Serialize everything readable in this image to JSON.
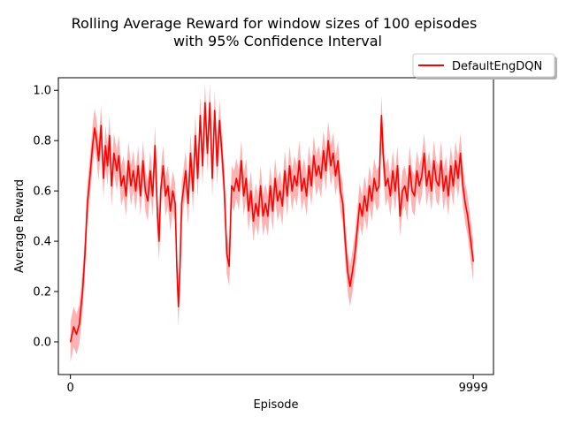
{
  "chart_data": {
    "type": "line",
    "title_line1": "Rolling Average Reward for window sizes of 100 episodes",
    "title_line2": "with 95% Confidence Interval",
    "xlabel": "Episode",
    "ylabel": "Average Reward",
    "xlim": [
      -300,
      10500
    ],
    "ylim": [
      -0.13,
      1.05
    ],
    "x_ticks": [
      0,
      9999
    ],
    "x_tick_labels": [
      "0",
      "9999"
    ],
    "y_ticks": [
      0.0,
      0.2,
      0.4,
      0.6,
      0.8,
      1.0
    ],
    "y_tick_labels": [
      "0.0",
      "0.2",
      "0.4",
      "0.6",
      "0.8",
      "1.0"
    ],
    "grid": false,
    "legend_placement": "above-right",
    "series": [
      {
        "name": "DefaultEngDQN",
        "color": "#ff0000",
        "band_color": "#ff0000",
        "band_opacity": 0.3,
        "ci_halfwidth": 0.08,
        "points": [
          [
            0,
            0.0
          ],
          [
            80,
            0.06
          ],
          [
            150,
            0.03
          ],
          [
            220,
            0.07
          ],
          [
            300,
            0.2
          ],
          [
            360,
            0.35
          ],
          [
            420,
            0.55
          ],
          [
            480,
            0.65
          ],
          [
            550,
            0.78
          ],
          [
            600,
            0.85
          ],
          [
            650,
            0.8
          ],
          [
            700,
            0.72
          ],
          [
            760,
            0.86
          ],
          [
            820,
            0.65
          ],
          [
            870,
            0.78
          ],
          [
            920,
            0.7
          ],
          [
            970,
            0.82
          ],
          [
            1020,
            0.62
          ],
          [
            1080,
            0.75
          ],
          [
            1150,
            0.68
          ],
          [
            1200,
            0.74
          ],
          [
            1260,
            0.62
          ],
          [
            1320,
            0.66
          ],
          [
            1380,
            0.58
          ],
          [
            1440,
            0.72
          ],
          [
            1500,
            0.62
          ],
          [
            1560,
            0.68
          ],
          [
            1620,
            0.6
          ],
          [
            1680,
            0.7
          ],
          [
            1740,
            0.58
          ],
          [
            1800,
            0.72
          ],
          [
            1860,
            0.6
          ],
          [
            1920,
            0.56
          ],
          [
            1980,
            0.68
          ],
          [
            2040,
            0.58
          ],
          [
            2100,
            0.78
          ],
          [
            2160,
            0.5
          ],
          [
            2200,
            0.4
          ],
          [
            2240,
            0.6
          ],
          [
            2300,
            0.7
          ],
          [
            2360,
            0.58
          ],
          [
            2420,
            0.62
          ],
          [
            2480,
            0.52
          ],
          [
            2540,
            0.6
          ],
          [
            2600,
            0.55
          ],
          [
            2640,
            0.3
          ],
          [
            2680,
            0.14
          ],
          [
            2720,
            0.3
          ],
          [
            2760,
            0.55
          ],
          [
            2800,
            0.6
          ],
          [
            2860,
            0.68
          ],
          [
            2920,
            0.55
          ],
          [
            2980,
            0.75
          ],
          [
            3040,
            0.6
          ],
          [
            3100,
            0.82
          ],
          [
            3160,
            0.65
          ],
          [
            3220,
            0.9
          ],
          [
            3280,
            0.7
          ],
          [
            3340,
            0.95
          ],
          [
            3400,
            0.75
          ],
          [
            3460,
            0.95
          ],
          [
            3520,
            0.65
          ],
          [
            3580,
            0.92
          ],
          [
            3640,
            0.7
          ],
          [
            3700,
            0.88
          ],
          [
            3760,
            0.75
          ],
          [
            3820,
            0.6
          ],
          [
            3880,
            0.35
          ],
          [
            3940,
            0.3
          ],
          [
            4000,
            0.62
          ],
          [
            4060,
            0.6
          ],
          [
            4120,
            0.65
          ],
          [
            4180,
            0.6
          ],
          [
            4240,
            0.72
          ],
          [
            4300,
            0.58
          ],
          [
            4360,
            0.65
          ],
          [
            4420,
            0.52
          ],
          [
            4480,
            0.6
          ],
          [
            4540,
            0.48
          ],
          [
            4600,
            0.55
          ],
          [
            4660,
            0.5
          ],
          [
            4720,
            0.62
          ],
          [
            4780,
            0.5
          ],
          [
            4840,
            0.55
          ],
          [
            4900,
            0.5
          ],
          [
            4960,
            0.62
          ],
          [
            5020,
            0.52
          ],
          [
            5080,
            0.65
          ],
          [
            5140,
            0.56
          ],
          [
            5200,
            0.6
          ],
          [
            5260,
            0.54
          ],
          [
            5320,
            0.68
          ],
          [
            5380,
            0.58
          ],
          [
            5440,
            0.7
          ],
          [
            5500,
            0.6
          ],
          [
            5560,
            0.66
          ],
          [
            5620,
            0.62
          ],
          [
            5680,
            0.72
          ],
          [
            5740,
            0.6
          ],
          [
            5800,
            0.65
          ],
          [
            5860,
            0.58
          ],
          [
            5920,
            0.7
          ],
          [
            5980,
            0.62
          ],
          [
            6040,
            0.74
          ],
          [
            6100,
            0.66
          ],
          [
            6160,
            0.7
          ],
          [
            6220,
            0.65
          ],
          [
            6280,
            0.76
          ],
          [
            6340,
            0.68
          ],
          [
            6400,
            0.8
          ],
          [
            6460,
            0.7
          ],
          [
            6520,
            0.75
          ],
          [
            6580,
            0.66
          ],
          [
            6640,
            0.72
          ],
          [
            6700,
            0.6
          ],
          [
            6760,
            0.55
          ],
          [
            6820,
            0.4
          ],
          [
            6880,
            0.28
          ],
          [
            6940,
            0.22
          ],
          [
            7000,
            0.28
          ],
          [
            7060,
            0.35
          ],
          [
            7120,
            0.45
          ],
          [
            7180,
            0.55
          ],
          [
            7240,
            0.5
          ],
          [
            7300,
            0.58
          ],
          [
            7360,
            0.52
          ],
          [
            7420,
            0.62
          ],
          [
            7480,
            0.56
          ],
          [
            7540,
            0.65
          ],
          [
            7600,
            0.6
          ],
          [
            7660,
            0.62
          ],
          [
            7720,
            0.9
          ],
          [
            7760,
            0.75
          ],
          [
            7820,
            0.62
          ],
          [
            7880,
            0.65
          ],
          [
            7940,
            0.58
          ],
          [
            8000,
            0.68
          ],
          [
            8060,
            0.6
          ],
          [
            8120,
            0.7
          ],
          [
            8180,
            0.5
          ],
          [
            8240,
            0.6
          ],
          [
            8300,
            0.62
          ],
          [
            8360,
            0.56
          ],
          [
            8420,
            0.7
          ],
          [
            8480,
            0.6
          ],
          [
            8540,
            0.58
          ],
          [
            8600,
            0.68
          ],
          [
            8660,
            0.62
          ],
          [
            8720,
            0.66
          ],
          [
            8780,
            0.75
          ],
          [
            8840,
            0.62
          ],
          [
            8900,
            0.68
          ],
          [
            8960,
            0.6
          ],
          [
            9020,
            0.72
          ],
          [
            9080,
            0.64
          ],
          [
            9140,
            0.62
          ],
          [
            9200,
            0.72
          ],
          [
            9260,
            0.6
          ],
          [
            9320,
            0.66
          ],
          [
            9380,
            0.58
          ],
          [
            9440,
            0.7
          ],
          [
            9500,
            0.62
          ],
          [
            9560,
            0.72
          ],
          [
            9620,
            0.65
          ],
          [
            9680,
            0.75
          ],
          [
            9740,
            0.62
          ],
          [
            9800,
            0.55
          ],
          [
            9860,
            0.5
          ],
          [
            9920,
            0.42
          ],
          [
            9999,
            0.32
          ]
        ]
      }
    ]
  }
}
